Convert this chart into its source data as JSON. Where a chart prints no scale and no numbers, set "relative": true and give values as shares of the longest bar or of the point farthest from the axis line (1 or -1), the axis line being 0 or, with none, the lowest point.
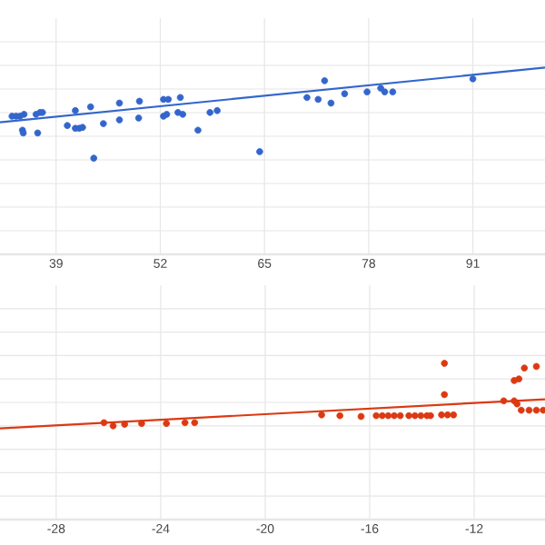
{
  "chart_data": [
    {
      "type": "scatter",
      "relative": true,
      "xlim": [
        32,
        100
      ],
      "xticks": [
        39,
        52,
        65,
        78,
        91
      ],
      "grid": true,
      "tick_labels": "x",
      "marker": "circle",
      "series": [
        {
          "color": "#3366cc",
          "x": [
            33.5,
            34.0,
            34.5,
            35.0,
            34.8,
            34.9,
            36.5,
            36.7,
            37.0,
            37.3,
            40.4,
            41.4,
            41.4,
            41.9,
            42.3,
            43.3,
            43.7,
            44.9,
            46.9,
            46.9,
            49.2,
            49.4,
            49.3,
            52.4,
            53.0,
            52.4,
            52.8,
            54.5,
            54.2,
            54.8,
            56.7,
            58.2,
            59.1,
            64.4,
            70.3,
            71.7,
            72.5,
            73.3,
            75.0,
            77.8,
            79.5,
            80.0,
            81.0,
            91.0
          ],
          "values": [
            0.74,
            0.74,
            0.74,
            0.75,
            0.665,
            0.65,
            0.75,
            0.65,
            0.76,
            0.76,
            0.69,
            0.77,
            0.675,
            0.675,
            0.68,
            0.79,
            0.515,
            0.7,
            0.81,
            0.72,
            null,
            0.82,
            0.73,
            0.83,
            0.83,
            0.74,
            0.75,
            0.84,
            0.76,
            0.75,
            0.665,
            0.76,
            0.77,
            0.55,
            0.84,
            0.83,
            0.93,
            0.81,
            0.86,
            0.87,
            0.89,
            0.87,
            0.87,
            0.94
          ]
        },
        {
          "type": "line",
          "marker": "none",
          "color": "#3366cc",
          "x": [
            32,
            100
          ],
          "values": [
            0.707,
            1.0
          ]
        }
      ]
    },
    {
      "type": "scatter",
      "relative": true,
      "xlim": [
        -30.15,
        -9.29
      ],
      "xticks": [
        -28,
        -24,
        -20,
        -16,
        -12
      ],
      "grid": true,
      "tick_labels": "x",
      "marker": "circle",
      "series": [
        {
          "color": "#dc3912",
          "x": [
            -26.17,
            -25.82,
            -25.38,
            -24.73,
            -23.78,
            -23.07,
            -22.7,
            -17.84,
            -17.14,
            -16.33,
            -15.75,
            -15.52,
            -15.29,
            -15.06,
            -14.83,
            -14.5,
            -14.27,
            -14.04,
            -13.81,
            -13.67,
            -13.25,
            -13.02,
            -12.79,
            -13.14,
            -13.14,
            -10.87,
            -10.47,
            -10.36,
            -10.47,
            -10.29,
            -10.08,
            -9.62,
            -10.2,
            -9.9,
            -9.62,
            -9.36
          ],
          "values": [
            0.62,
            0.6,
            0.61,
            0.615,
            0.615,
            0.62,
            0.62,
            0.67,
            0.665,
            0.66,
            0.665,
            0.665,
            0.665,
            0.665,
            0.665,
            0.665,
            0.665,
            0.665,
            0.665,
            0.665,
            0.67,
            0.67,
            0.67,
            1.0,
            0.8,
            0.76,
            0.76,
            0.74,
            0.89,
            0.9,
            0.97,
            0.98,
            0.7,
            0.7,
            0.7,
            0.7
          ]
        },
        {
          "type": "line",
          "marker": "none",
          "color": "#dc3912",
          "x": [
            -30.15,
            -9.29
          ],
          "values": [
            0.584,
            0.77
          ]
        }
      ]
    }
  ]
}
